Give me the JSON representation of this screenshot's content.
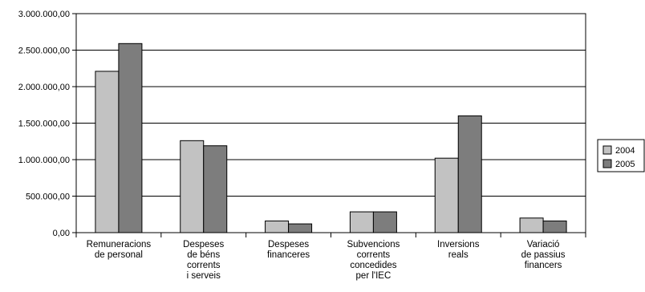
{
  "chart_data": {
    "type": "bar",
    "categories": [
      [
        "Remuneracions",
        "de personal"
      ],
      [
        "Despeses",
        "de béns",
        "corrents",
        "i serveis"
      ],
      [
        "Despeses",
        "financeres"
      ],
      [
        "Subvencions",
        "corrents",
        "concedides",
        "per l'IEC"
      ],
      [
        "Inversions",
        "reals"
      ],
      [
        "Variació",
        "de passius",
        "financers"
      ]
    ],
    "series": [
      {
        "name": "2004",
        "color": "#c2c2c2",
        "values": [
          2210000,
          1260000,
          160000,
          285000,
          1020000,
          200000
        ]
      },
      {
        "name": "2005",
        "color": "#7d7d7d",
        "values": [
          2590000,
          1190000,
          120000,
          285000,
          1600000,
          160000
        ]
      }
    ],
    "ylim": [
      0,
      3000000
    ],
    "y_ticks": [
      "0,00",
      "500.000,00",
      "1.000.000,00",
      "1.500.000,00",
      "2.000.000,00",
      "2.500.000,00",
      "3.000.000,00"
    ],
    "grid": true,
    "legend_position": "right"
  }
}
